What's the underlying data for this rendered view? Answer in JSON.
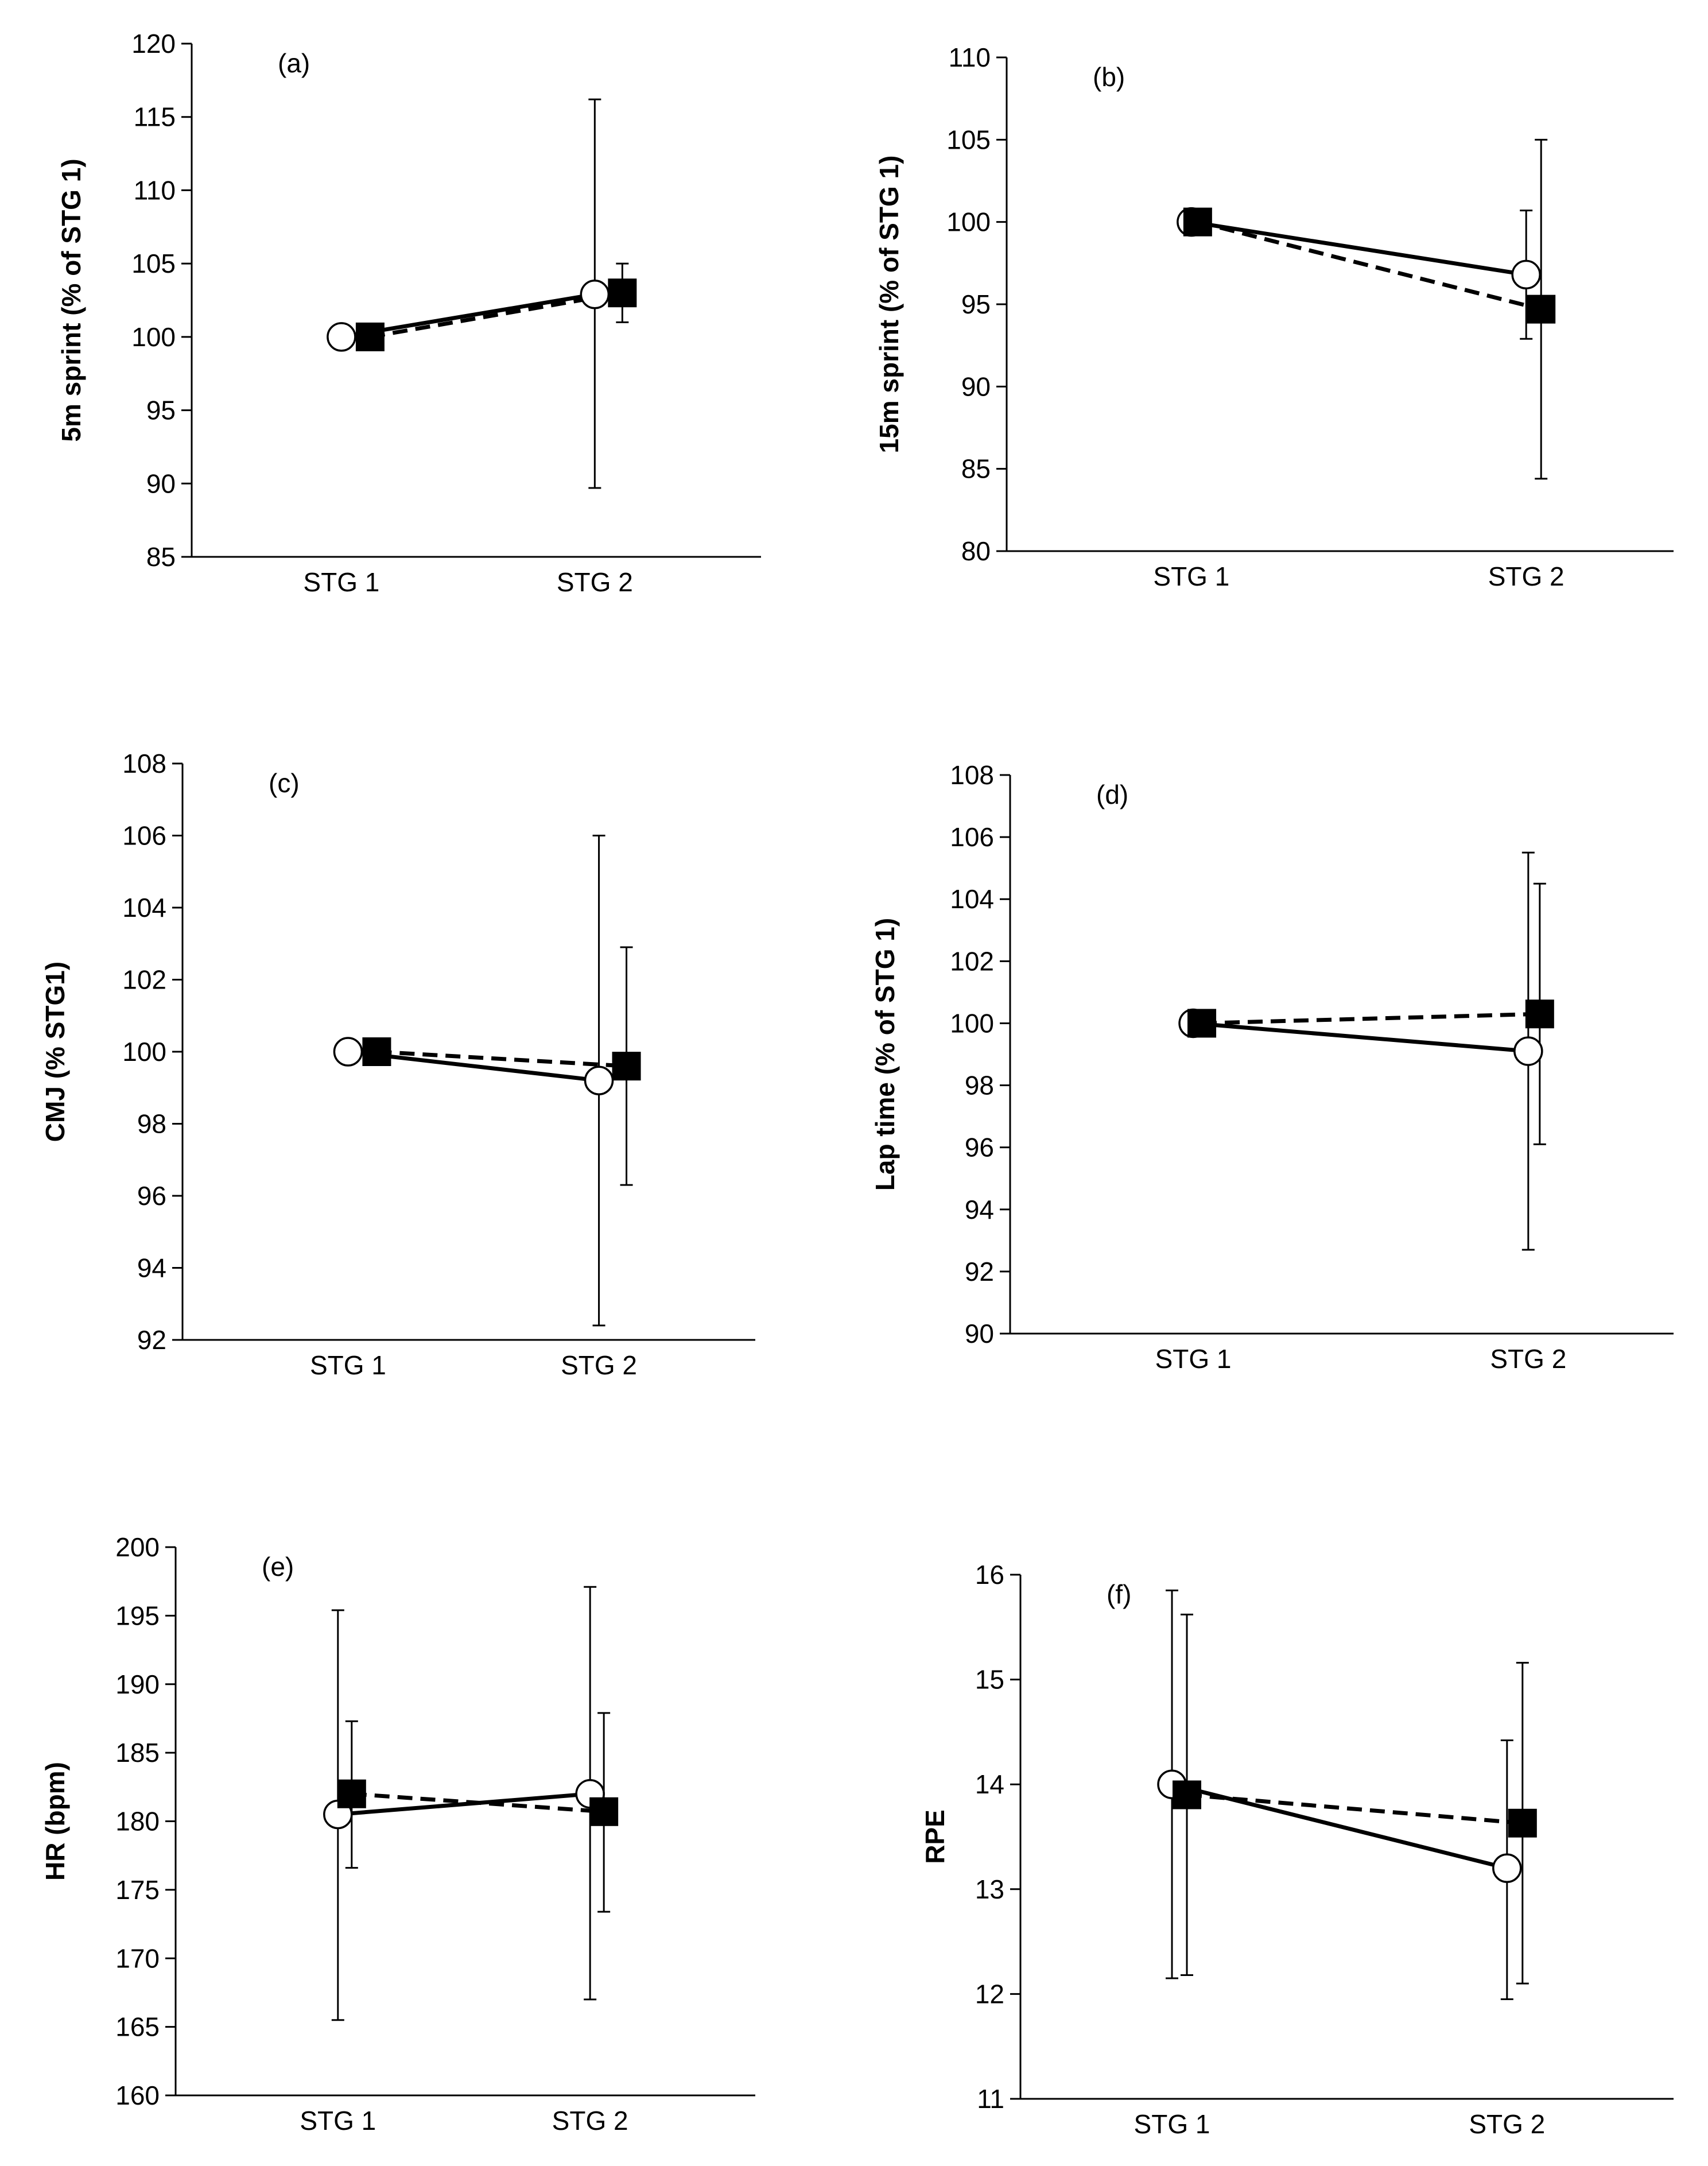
{
  "chart_data": [
    {
      "type": "line",
      "panel_label": "(a)",
      "ylabel": "5m sprint (% of STG 1)",
      "categories": [
        "STG 1",
        "STG 2"
      ],
      "ylim": [
        85,
        120
      ],
      "yticks": [
        85,
        90,
        95,
        100,
        105,
        110,
        115,
        120
      ],
      "series": [
        {
          "marker": "open-circle",
          "line": "solid",
          "values": [
            100,
            102.9
          ],
          "error_low": [
            null,
            89.7
          ],
          "error_high": [
            null,
            116.2
          ]
        },
        {
          "marker": "filled-square",
          "line": "dashed",
          "values": [
            100,
            103
          ],
          "error_low": [
            null,
            101
          ],
          "error_high": [
            null,
            105
          ]
        }
      ]
    },
    {
      "type": "line",
      "panel_label": "(b)",
      "ylabel": "15m sprint (% of STG 1)",
      "categories": [
        "STG 1",
        "STG 2"
      ],
      "ylim": [
        80,
        110
      ],
      "yticks": [
        80,
        85,
        90,
        95,
        100,
        105,
        110
      ],
      "series": [
        {
          "marker": "open-circle",
          "line": "solid",
          "values": [
            100,
            96.8
          ],
          "error_low": [
            null,
            92.9
          ],
          "error_high": [
            null,
            100.7
          ]
        },
        {
          "marker": "filled-square",
          "line": "dashed",
          "values": [
            100,
            94.7
          ],
          "error_low": [
            null,
            84.4
          ],
          "error_high": [
            null,
            105
          ]
        }
      ]
    },
    {
      "type": "line",
      "panel_label": "(c)",
      "ylabel": "CMJ (% STG1)",
      "categories": [
        "STG 1",
        "STG 2"
      ],
      "ylim": [
        92,
        108
      ],
      "yticks": [
        92,
        94,
        96,
        98,
        100,
        102,
        104,
        106,
        108
      ],
      "series": [
        {
          "marker": "open-circle",
          "line": "solid",
          "values": [
            100,
            99.2
          ],
          "error_low": [
            null,
            92.4
          ],
          "error_high": [
            null,
            106
          ]
        },
        {
          "marker": "filled-square",
          "line": "dashed",
          "values": [
            100,
            99.6
          ],
          "error_low": [
            null,
            96.3
          ],
          "error_high": [
            null,
            102.9
          ]
        }
      ]
    },
    {
      "type": "line",
      "panel_label": "(d)",
      "ylabel": "Lap time (% of STG 1)",
      "categories": [
        "STG 1",
        "STG 2"
      ],
      "ylim": [
        90,
        108
      ],
      "yticks": [
        90,
        92,
        94,
        96,
        98,
        100,
        102,
        104,
        106,
        108
      ],
      "series": [
        {
          "marker": "open-circle",
          "line": "solid",
          "values": [
            100,
            99.1
          ],
          "error_low": [
            null,
            92.7
          ],
          "error_high": [
            null,
            105.5
          ]
        },
        {
          "marker": "filled-square",
          "line": "dashed",
          "values": [
            100,
            100.3
          ],
          "error_low": [
            null,
            96.1
          ],
          "error_high": [
            null,
            104.5
          ]
        }
      ]
    },
    {
      "type": "line",
      "panel_label": "(e)",
      "ylabel": "HR (bpm)",
      "categories": [
        "STG 1",
        "STG 2"
      ],
      "ylim": [
        160,
        200
      ],
      "yticks": [
        160,
        165,
        170,
        175,
        180,
        185,
        190,
        195,
        200
      ],
      "series": [
        {
          "marker": "open-circle",
          "line": "solid",
          "values": [
            180.5,
            182
          ],
          "error_low": [
            165.5,
            167
          ],
          "error_high": [
            195.4,
            197.1
          ]
        },
        {
          "marker": "filled-square",
          "line": "dashed",
          "values": [
            182,
            180.7
          ],
          "error_low": [
            176.6,
            173.4
          ],
          "error_high": [
            187.3,
            187.9
          ]
        }
      ]
    },
    {
      "type": "line",
      "panel_label": "(f)",
      "ylabel": "RPE",
      "categories": [
        "STG 1",
        "STG 2"
      ],
      "ylim": [
        11,
        16
      ],
      "yticks": [
        11,
        12,
        13,
        14,
        15,
        16
      ],
      "series": [
        {
          "marker": "open-circle",
          "line": "solid",
          "values": [
            14,
            13.2
          ],
          "error_low": [
            12.15,
            11.95
          ],
          "error_high": [
            15.85,
            14.42
          ]
        },
        {
          "marker": "filled-square",
          "line": "dashed",
          "values": [
            13.9,
            13.63
          ],
          "error_low": [
            12.18,
            12.1
          ],
          "error_high": [
            15.62,
            15.16
          ]
        }
      ]
    }
  ]
}
